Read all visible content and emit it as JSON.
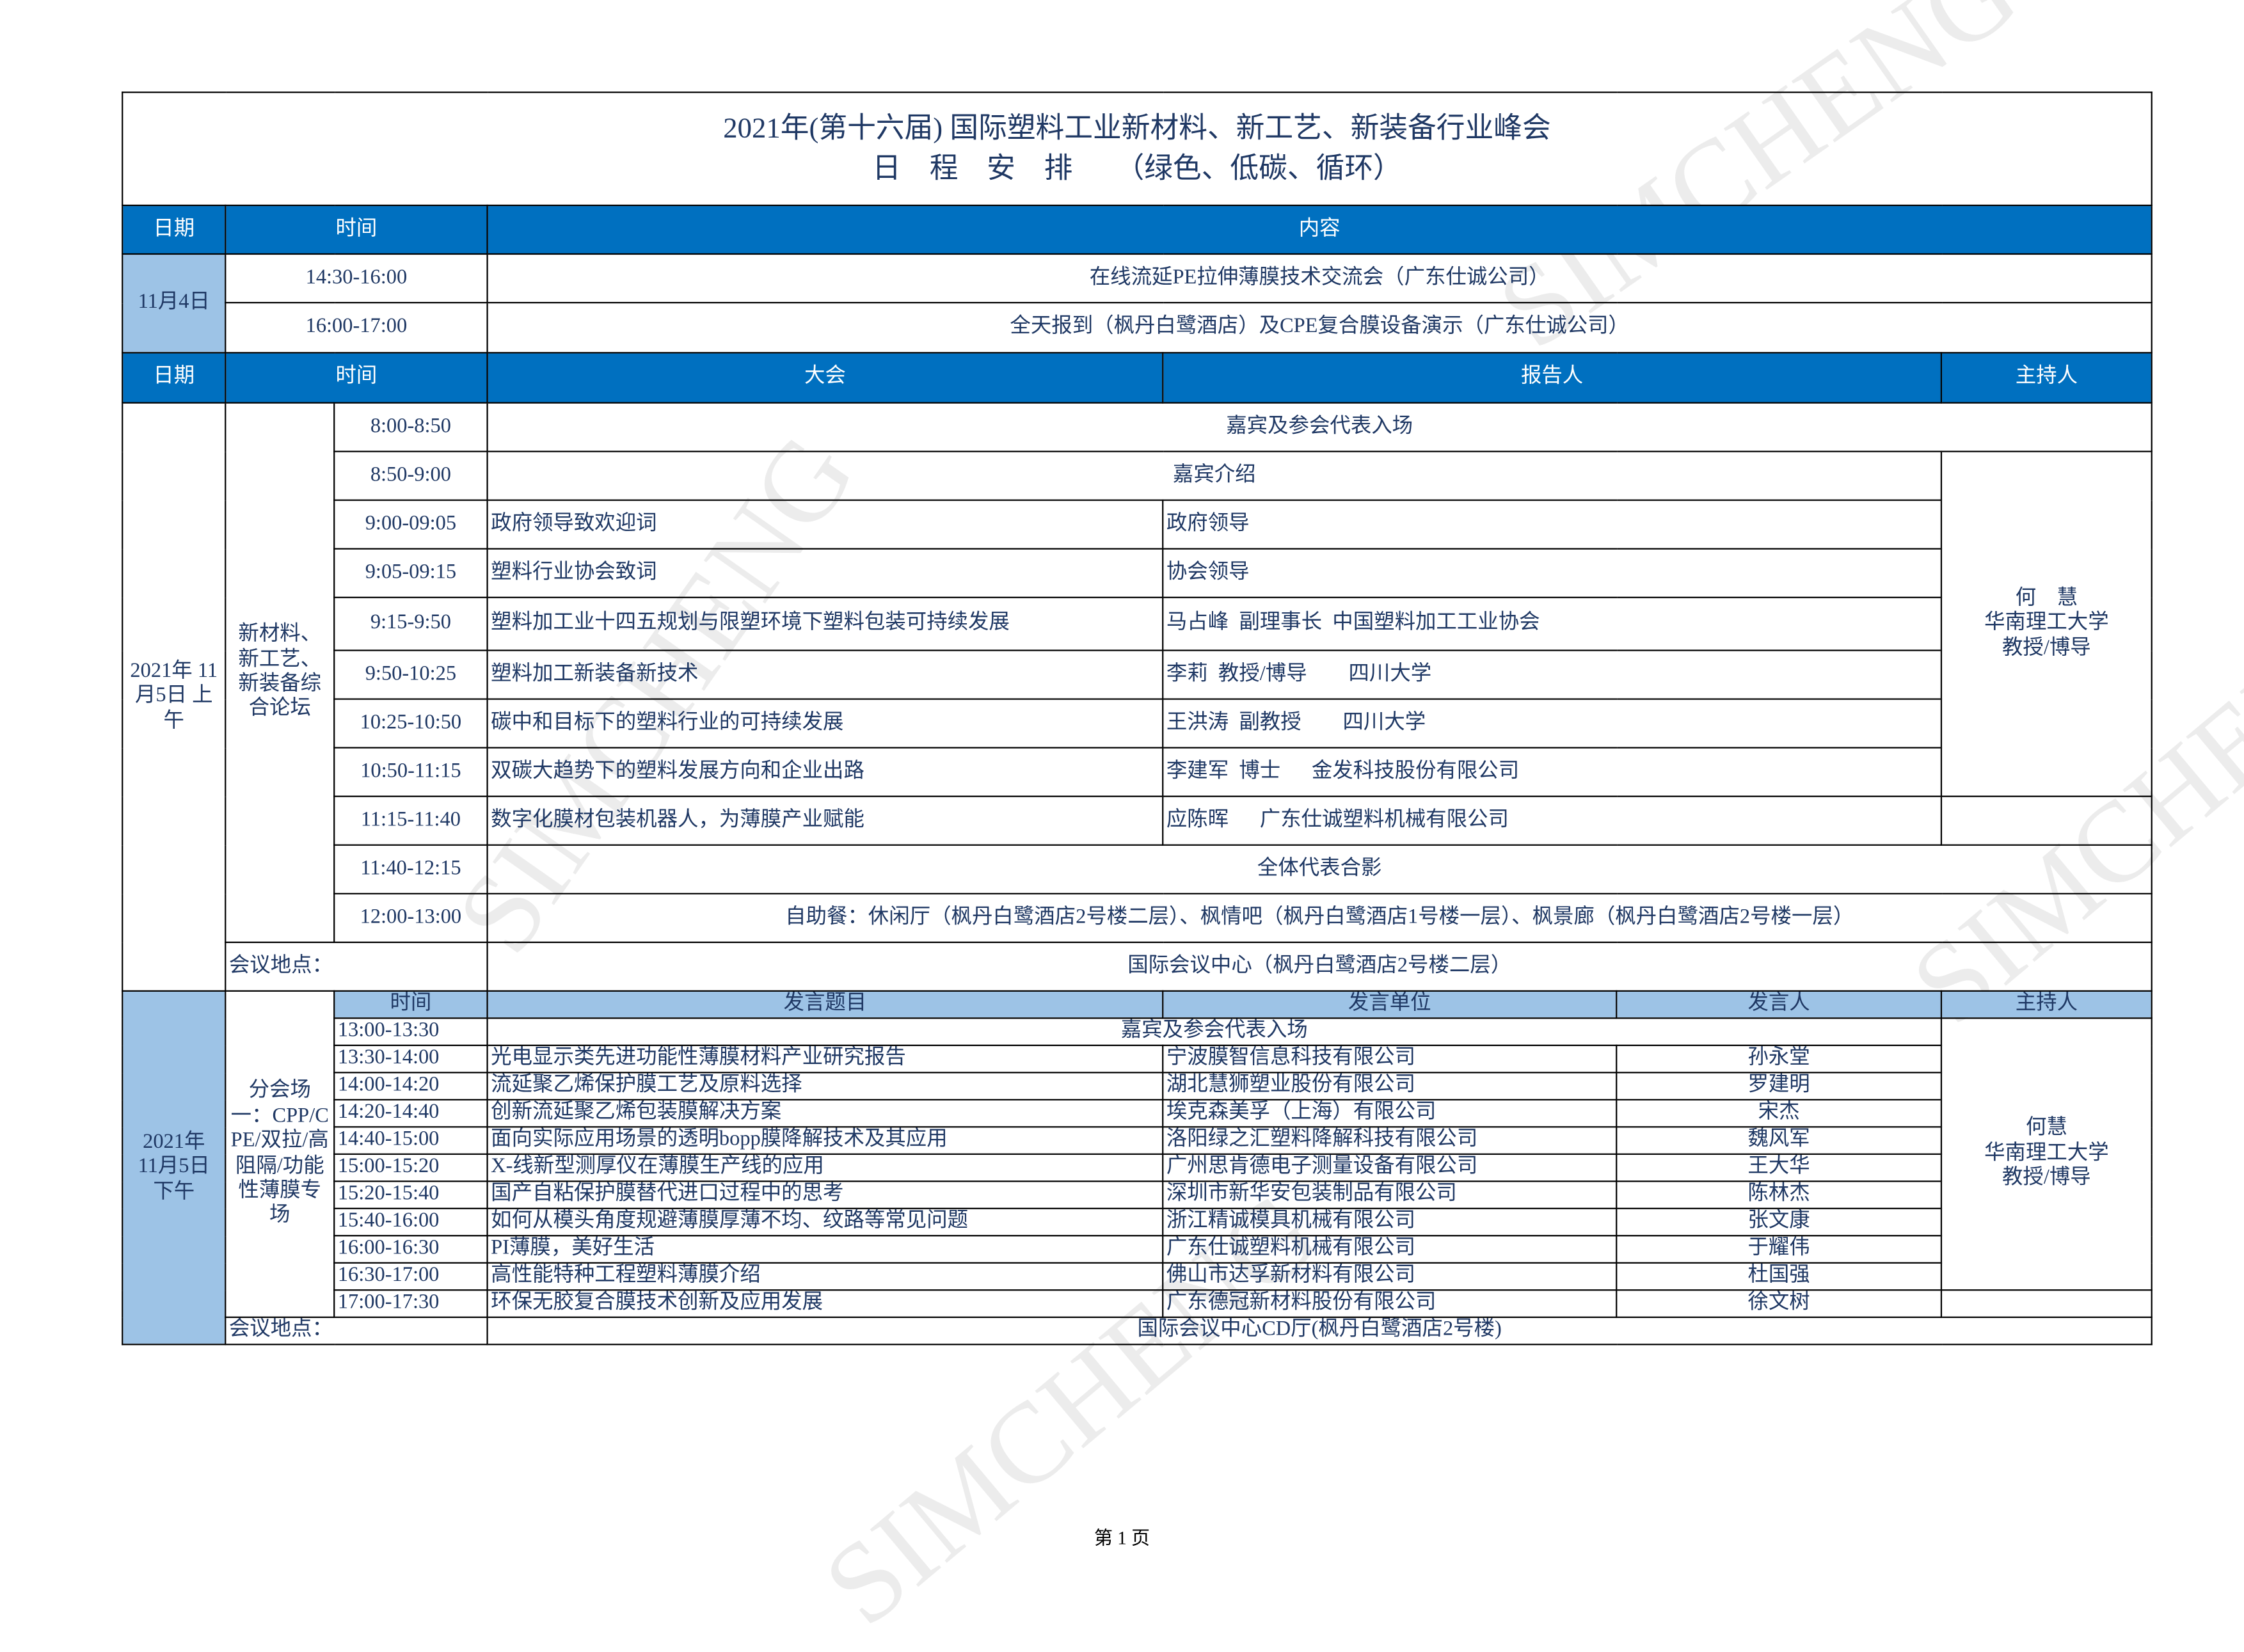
{
  "title": {
    "line1": "2021年(第十六届) 国际塑料工业新材料、新工艺、新装备行业峰会",
    "line2": "日　程　安　排　　（绿色、低碳、循环）"
  },
  "header1": {
    "date": "日期",
    "time": "时间",
    "content": "内容"
  },
  "nov4": {
    "date": "11月4日",
    "rows": [
      {
        "time": "14:30-16:00",
        "content": "在线流延PE拉伸薄膜技术交流会（广东仕诚公司）"
      },
      {
        "time": "16:00-17:00",
        "content": "全天报到（枫丹白鹭酒店）及CPE复合膜设备演示（广东仕诚公司）"
      }
    ]
  },
  "header2": {
    "date": "日期",
    "time": "时间",
    "session": "大会",
    "reporter": "报告人",
    "host": "主持人"
  },
  "morning": {
    "date": "2021年\n11月5日\n上午",
    "forum": "新材料、新工艺、新装备综合论坛",
    "host": "何　慧\n华南理工大学\n教授/博导",
    "rows": [
      {
        "time": "8:00-8:50",
        "content": "嘉宾及参会代表入场"
      },
      {
        "time": "8:50-9:00",
        "content": "嘉宾介绍"
      },
      {
        "time": "9:00-09:05",
        "topic": "政府领导致欢迎词",
        "reporter": "政府领导"
      },
      {
        "time": "9:05-09:15",
        "topic": "塑料行业协会致词",
        "reporter": "协会领导"
      },
      {
        "time": "9:15-9:50",
        "topic": "塑料加工业十四五规划与限塑环境下塑料包装可持续发展",
        "reporter": "马占峰  副理事长  中国塑料加工工业协会"
      },
      {
        "time": "9:50-10:25",
        "topic": "塑料加工新装备新技术",
        "reporter": "李莉  教授/博导　　四川大学"
      },
      {
        "time": "10:25-10:50",
        "topic": "碳中和目标下的塑料行业的可持续发展",
        "reporter": "王洪涛  副教授　　四川大学"
      },
      {
        "time": "10:50-11:15",
        "topic": "双碳大趋势下的塑料发展方向和企业出路",
        "reporter": "李建军  博士　  金发科技股份有限公司"
      },
      {
        "time": "11:15-11:40",
        "topic": "数字化膜材包装机器人，为薄膜产业赋能",
        "reporter": "应陈晖　  广东仕诚塑料机械有限公司"
      },
      {
        "time": "11:40-12:15",
        "content": "全体代表合影"
      },
      {
        "time": "12:00-13:00",
        "content": "自助餐：休闲厅（枫丹白鹭酒店2号楼二层）、枫情吧（枫丹白鹭酒店1号楼一层）、枫景廊（枫丹白鹭酒店2号楼一层）"
      }
    ],
    "location_label": "会议地点：",
    "location": "国际会议中心（枫丹白鹭酒店2号楼二层）"
  },
  "afternoon": {
    "date": "2021年\n11月5日\n下午",
    "forum": "分会场一：CPP/CPE/双拉/高阻隔/功能性薄膜专场",
    "header": {
      "time": "时间",
      "topic": "发言题目",
      "unit": "发言单位",
      "speaker": "发言人",
      "host": "主持人"
    },
    "host": "何慧\n华南理工大学\n教授/博导",
    "first": {
      "time": "13:00-13:30",
      "content": "嘉宾及参会代表入场"
    },
    "rows": [
      {
        "time": "13:30-14:00",
        "topic": "光电显示类先进功能性薄膜材料产业研究报告",
        "unit": "宁波膜智信息科技有限公司",
        "speaker": "孙永堂"
      },
      {
        "time": "14:00-14:20",
        "topic": "流延聚乙烯保护膜工艺及原料选择",
        "unit": "湖北慧狮塑业股份有限公司",
        "speaker": "罗建明"
      },
      {
        "time": "14:20-14:40",
        "topic": "创新流延聚乙烯包装膜解决方案",
        "unit": "埃克森美孚（上海）有限公司",
        "speaker": "宋杰"
      },
      {
        "time": "14:40-15:00",
        "topic": "面向实际应用场景的透明bopp膜降解技术及其应用",
        "unit": "洛阳绿之汇塑料降解科技有限公司",
        "speaker": "魏风军"
      },
      {
        "time": "15:00-15:20",
        "topic": "X-线新型测厚仪在薄膜生产线的应用",
        "unit": "广州思肯德电子测量设备有限公司",
        "speaker": "王大华"
      },
      {
        "time": "15:20-15:40",
        "topic": "国产自粘保护膜替代进口过程中的思考",
        "unit": "深圳市新华安包装制品有限公司",
        "speaker": "陈林杰"
      },
      {
        "time": "15:40-16:00",
        "topic": "如何从模头角度规避薄膜厚薄不均、纹路等常见问题",
        "unit": "浙江精诚模具机械有限公司",
        "speaker": "张文康"
      },
      {
        "time": "16:00-16:30",
        "topic": "PI薄膜，美好生活",
        "unit": "广东仕诚塑料机械有限公司",
        "speaker": "于耀伟"
      },
      {
        "time": "16:30-17:00",
        "topic": "高性能特种工程塑料薄膜介绍",
        "unit": "佛山市达孚新材料有限公司",
        "speaker": "杜国强"
      },
      {
        "time": "17:00-17:30",
        "topic": "环保无胶复合膜技术创新及应用发展",
        "unit": "广东德冠新材料股份有限公司",
        "speaker": "徐文树"
      }
    ],
    "location_label": "会议地点：",
    "location": "国际会议中心CD厅(枫丹白鹭酒店2号楼)"
  },
  "footer": {
    "page": "第 1 页"
  },
  "watermark": "SIMCHENG",
  "colors": {
    "header_blue": "#0070c0",
    "light_blue": "#9dc3e6",
    "text": "#1f3864"
  }
}
